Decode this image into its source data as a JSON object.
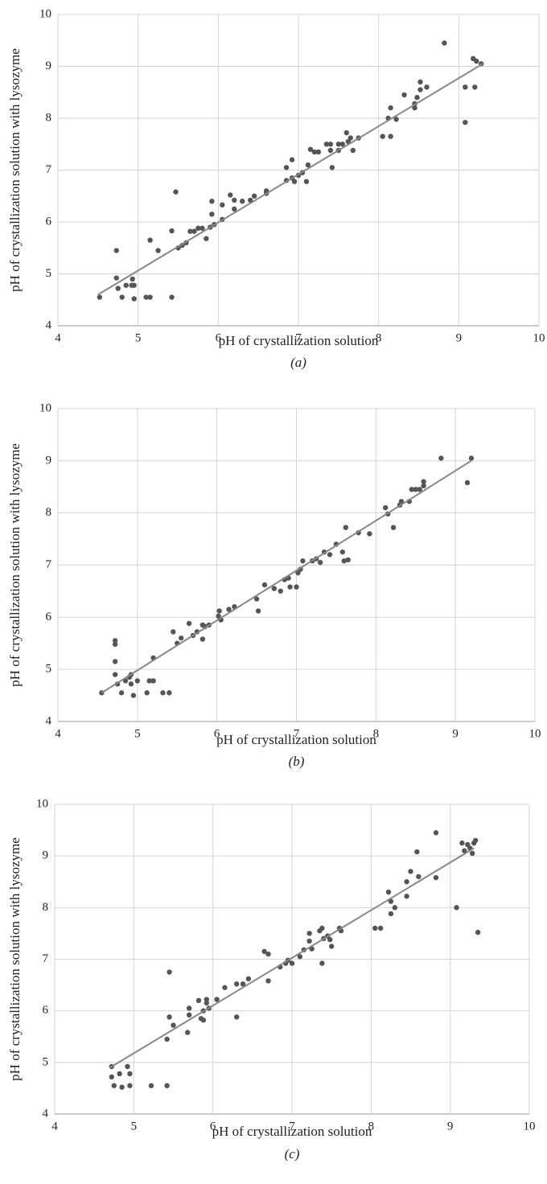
{
  "chart_data": [
    {
      "type": "scatter",
      "x_label": "pH of crystallization solution",
      "y_label": "pH of crystallization solution with lysozyme",
      "caption": "(a)",
      "xlim": [
        4,
        10
      ],
      "ylim": [
        4,
        10
      ],
      "xticks": [
        4,
        5,
        6,
        7,
        8,
        9,
        10
      ],
      "yticks": [
        4,
        5,
        6,
        7,
        8,
        9,
        10
      ],
      "grid": true,
      "color": "#555555",
      "line_color": "#888888",
      "x": [
        4.52,
        4.73,
        4.73,
        4.75,
        4.8,
        4.85,
        4.92,
        4.93,
        4.95,
        4.95,
        5.1,
        5.15,
        5.15,
        5.25,
        5.42,
        5.42,
        5.47,
        5.5,
        5.55,
        5.6,
        5.65,
        5.7,
        5.75,
        5.8,
        5.85,
        5.9,
        5.92,
        5.92,
        5.95,
        6.05,
        6.05,
        6.15,
        6.2,
        6.2,
        6.3,
        6.4,
        6.45,
        6.6,
        6.6,
        6.85,
        6.85,
        6.92,
        6.92,
        6.95,
        7.0,
        7.05,
        7.1,
        7.12,
        7.15,
        7.2,
        7.25,
        7.35,
        7.4,
        7.4,
        7.42,
        7.5,
        7.5,
        7.55,
        7.6,
        7.62,
        7.65,
        7.68,
        7.75,
        8.05,
        8.12,
        8.15,
        8.15,
        8.22,
        8.32,
        8.45,
        8.45,
        8.48,
        8.52,
        8.52,
        8.6,
        8.82,
        9.08,
        9.08,
        9.18,
        9.2,
        9.22,
        9.28
      ],
      "y": [
        4.55,
        5.45,
        4.92,
        4.72,
        4.55,
        4.78,
        4.78,
        4.9,
        4.52,
        4.78,
        4.55,
        4.55,
        5.65,
        5.45,
        5.83,
        4.55,
        6.58,
        5.5,
        5.55,
        5.6,
        5.82,
        5.82,
        5.88,
        5.88,
        5.68,
        5.9,
        6.15,
        6.4,
        5.95,
        6.05,
        6.33,
        6.52,
        6.25,
        6.42,
        6.4,
        6.42,
        6.5,
        6.55,
        6.6,
        6.8,
        7.05,
        7.2,
        6.85,
        6.78,
        6.9,
        6.95,
        6.78,
        7.1,
        7.4,
        7.35,
        7.35,
        7.5,
        7.5,
        7.38,
        7.05,
        7.5,
        7.38,
        7.5,
        7.72,
        7.55,
        7.62,
        7.38,
        7.62,
        7.65,
        8.0,
        8.2,
        7.65,
        7.98,
        8.45,
        8.28,
        8.2,
        8.4,
        8.55,
        8.7,
        8.6,
        9.45,
        8.6,
        7.92,
        9.15,
        8.6,
        9.1,
        9.05
      ],
      "trendline": {
        "x": [
          4.5,
          9.3
        ],
        "y": [
          4.6,
          9.05
        ]
      }
    },
    {
      "type": "scatter",
      "x_label": "pH of crystallization solution",
      "y_label": "pH of crystallization solution with lysozyme",
      "caption": "(b)",
      "xlim": [
        4,
        10
      ],
      "ylim": [
        4,
        10
      ],
      "xticks": [
        4,
        5,
        6,
        7,
        8,
        9,
        10
      ],
      "yticks": [
        4,
        5,
        6,
        7,
        8,
        9,
        10
      ],
      "grid": true,
      "color": "#555555",
      "line_color": "#888888",
      "x": [
        4.55,
        4.72,
        4.72,
        4.72,
        4.72,
        4.75,
        4.8,
        4.85,
        4.9,
        4.92,
        4.92,
        4.95,
        5.0,
        5.12,
        5.15,
        5.2,
        5.2,
        5.32,
        5.4,
        5.45,
        5.5,
        5.55,
        5.65,
        5.7,
        5.75,
        5.82,
        5.82,
        5.85,
        5.9,
        6.02,
        6.03,
        6.05,
        6.15,
        6.22,
        6.5,
        6.52,
        6.6,
        6.72,
        6.8,
        6.85,
        6.9,
        6.92,
        7.0,
        7.02,
        7.05,
        7.08,
        7.2,
        7.25,
        7.3,
        7.35,
        7.42,
        7.5,
        7.58,
        7.6,
        7.62,
        7.65,
        7.78,
        7.92,
        8.12,
        8.15,
        8.22,
        8.3,
        8.32,
        8.42,
        8.45,
        8.5,
        8.55,
        8.6,
        8.6,
        8.82,
        9.15,
        9.2
      ],
      "y": [
        4.55,
        5.55,
        5.48,
        5.15,
        4.9,
        4.72,
        4.55,
        4.78,
        4.85,
        4.9,
        4.72,
        4.5,
        4.78,
        4.55,
        4.78,
        4.78,
        5.22,
        4.55,
        4.55,
        5.72,
        5.5,
        5.6,
        5.88,
        5.65,
        5.72,
        5.58,
        5.85,
        5.82,
        5.85,
        6.02,
        6.12,
        5.95,
        6.15,
        6.2,
        6.35,
        6.12,
        6.62,
        6.55,
        6.5,
        6.72,
        6.75,
        6.58,
        6.58,
        6.85,
        6.92,
        7.08,
        7.08,
        7.12,
        7.05,
        7.25,
        7.2,
        7.4,
        7.25,
        7.08,
        7.72,
        7.1,
        7.62,
        7.6,
        8.1,
        7.98,
        7.72,
        8.15,
        8.22,
        8.22,
        8.45,
        8.45,
        8.45,
        8.52,
        8.6,
        9.05,
        8.58,
        9.05
      ],
      "trendline": {
        "x": [
          4.55,
          9.2
        ],
        "y": [
          4.55,
          9.0
        ]
      }
    },
    {
      "type": "scatter",
      "x_label": "pH of crystallization solution",
      "y_label": "pH of crystallization solution with lysozyme",
      "caption": "(c)",
      "xlim": [
        4,
        10
      ],
      "ylim": [
        4,
        10
      ],
      "xticks": [
        4,
        5,
        6,
        7,
        8,
        9,
        10
      ],
      "yticks": [
        4,
        5,
        6,
        7,
        8,
        9,
        10
      ],
      "grid": true,
      "color": "#555555",
      "line_color": "#888888",
      "x": [
        4.72,
        4.72,
        4.75,
        4.82,
        4.85,
        4.92,
        4.95,
        4.95,
        5.22,
        5.42,
        5.42,
        5.45,
        5.45,
        5.5,
        5.68,
        5.7,
        5.7,
        5.82,
        5.85,
        5.88,
        5.88,
        5.92,
        5.92,
        5.95,
        6.05,
        6.15,
        6.3,
        6.3,
        6.38,
        6.45,
        6.65,
        6.7,
        6.7,
        6.85,
        6.92,
        6.95,
        7.0,
        7.1,
        7.15,
        7.22,
        7.22,
        7.25,
        7.35,
        7.38,
        7.38,
        7.4,
        7.45,
        7.48,
        7.5,
        7.6,
        7.62,
        8.05,
        8.12,
        8.22,
        8.25,
        8.25,
        8.3,
        8.45,
        8.45,
        8.5,
        8.58,
        8.6,
        8.82,
        8.82,
        9.08,
        9.15,
        9.18,
        9.22,
        9.25,
        9.28,
        9.3,
        9.32,
        9.35
      ],
      "y": [
        4.92,
        4.72,
        4.55,
        4.78,
        4.52,
        4.92,
        4.55,
        4.78,
        4.55,
        4.55,
        5.45,
        6.75,
        5.88,
        5.72,
        5.58,
        5.92,
        6.05,
        6.2,
        5.85,
        6.0,
        5.82,
        6.22,
        6.15,
        6.05,
        6.22,
        6.45,
        6.52,
        5.88,
        6.52,
        6.62,
        7.15,
        7.1,
        6.58,
        6.85,
        6.92,
        6.98,
        6.92,
        7.05,
        7.18,
        7.5,
        7.35,
        7.2,
        7.55,
        7.6,
        6.92,
        7.4,
        7.45,
        7.38,
        7.25,
        7.6,
        7.55,
        7.6,
        7.6,
        8.3,
        8.12,
        7.88,
        8.0,
        8.5,
        8.22,
        8.7,
        9.08,
        8.6,
        9.45,
        8.58,
        8.0,
        9.25,
        9.1,
        9.22,
        9.15,
        9.05,
        9.25,
        9.3,
        7.52
      ],
      "trendline": {
        "x": [
          4.7,
          9.3
        ],
        "y": [
          4.9,
          9.15
        ]
      }
    }
  ]
}
